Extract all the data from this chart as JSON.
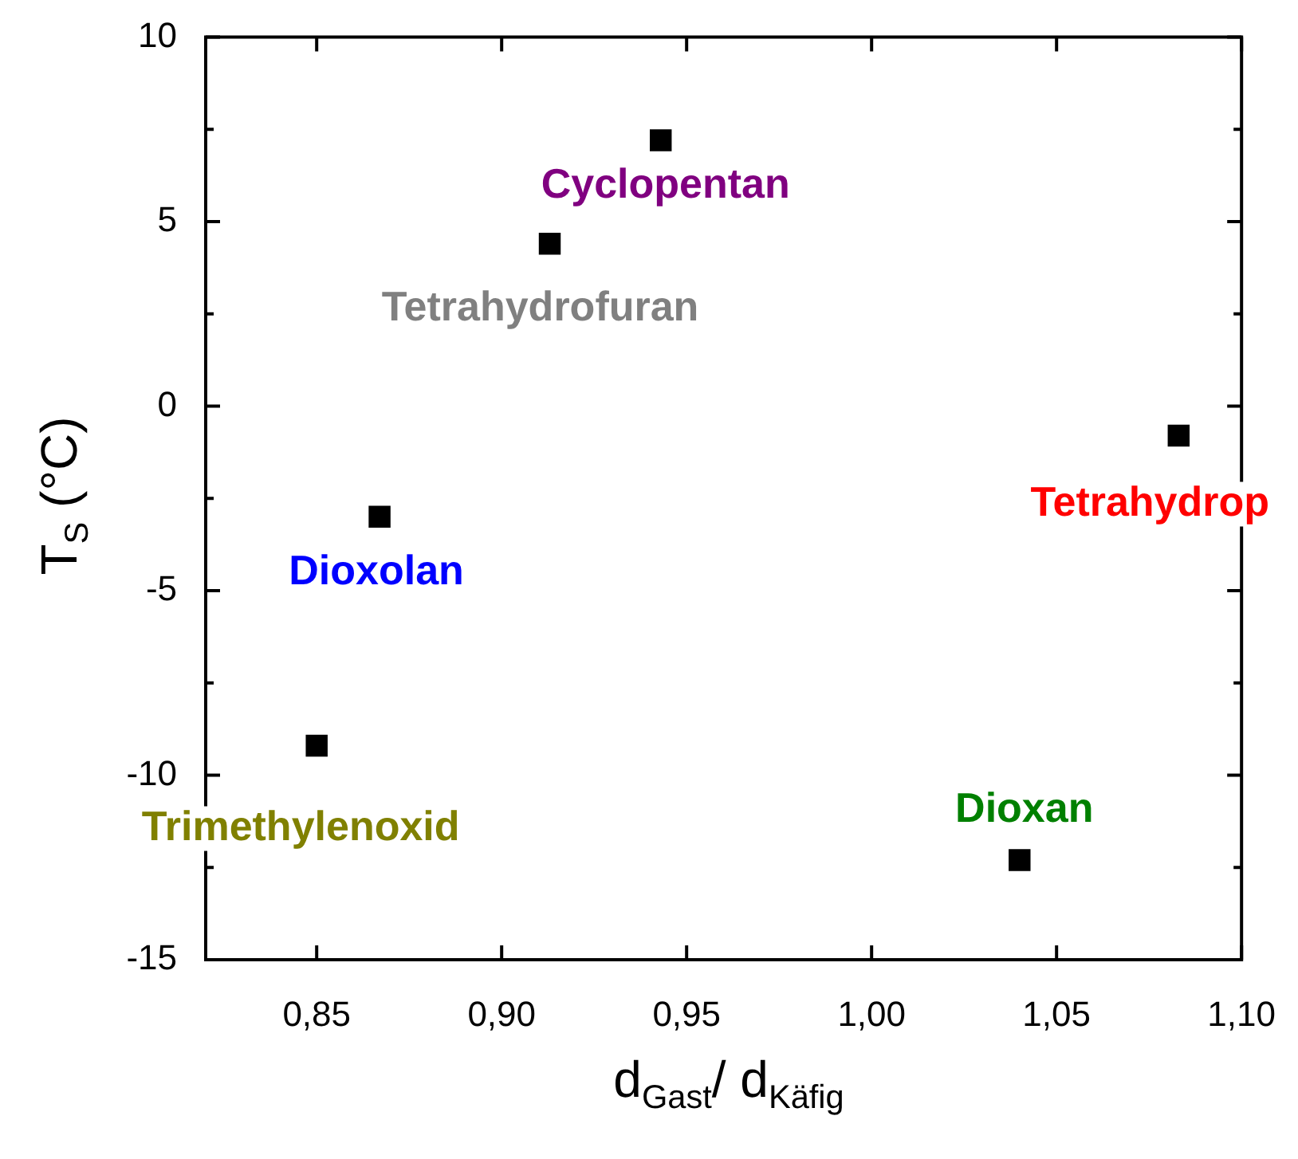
{
  "chart_data": {
    "type": "scatter",
    "xlabel": "d$_{Gast}$/ d$_{Käfig}$",
    "ylabel": "T$_{S}$ (°C)",
    "series": [
      {
        "name": "Cyclopentan",
        "color": "#000000",
        "x": [
          0.943
        ],
        "values": [
          7.2
        ]
      },
      {
        "name": "Tetrahydrofuran",
        "color": "#000000",
        "x": [
          0.913
        ],
        "values": [
          4.4
        ]
      },
      {
        "name": "Dioxolan",
        "color": "#000000",
        "x": [
          0.867
        ],
        "values": [
          -3.0
        ]
      },
      {
        "name": "Trimethylenoxid",
        "color": "#000000",
        "x": [
          0.85
        ],
        "values": [
          -9.2
        ]
      },
      {
        "name": "Dioxan",
        "color": "#000000",
        "x": [
          1.04
        ],
        "values": [
          -12.3
        ]
      },
      {
        "name": "Tetrahydrop",
        "color": "#000000",
        "x": [
          1.083
        ],
        "values": [
          -0.8
        ]
      }
    ],
    "marker": "square",
    "grid": false,
    "legend": false,
    "xlim": [
      0.82,
      1.1
    ],
    "xticks": [
      {
        "value": 0.85,
        "label": "0,85"
      },
      {
        "value": 0.9,
        "label": "0,90"
      },
      {
        "value": 0.95,
        "label": "0,95"
      },
      {
        "value": 1.0,
        "label": "1,00"
      },
      {
        "value": 1.05,
        "label": "1,05"
      },
      {
        "value": 1.1,
        "label": "1,10"
      }
    ],
    "ylim": [
      -15,
      10
    ],
    "yticks": [
      -15,
      {
        "value": -12.5,
        "label": null
      },
      -10,
      {
        "value": -7.5,
        "label": null
      },
      -5,
      {
        "value": -2.5,
        "label": null
      },
      0,
      {
        "value": 2.5,
        "label": null
      },
      5,
      {
        "value": 7.5,
        "label": null
      },
      10
    ]
  }
}
